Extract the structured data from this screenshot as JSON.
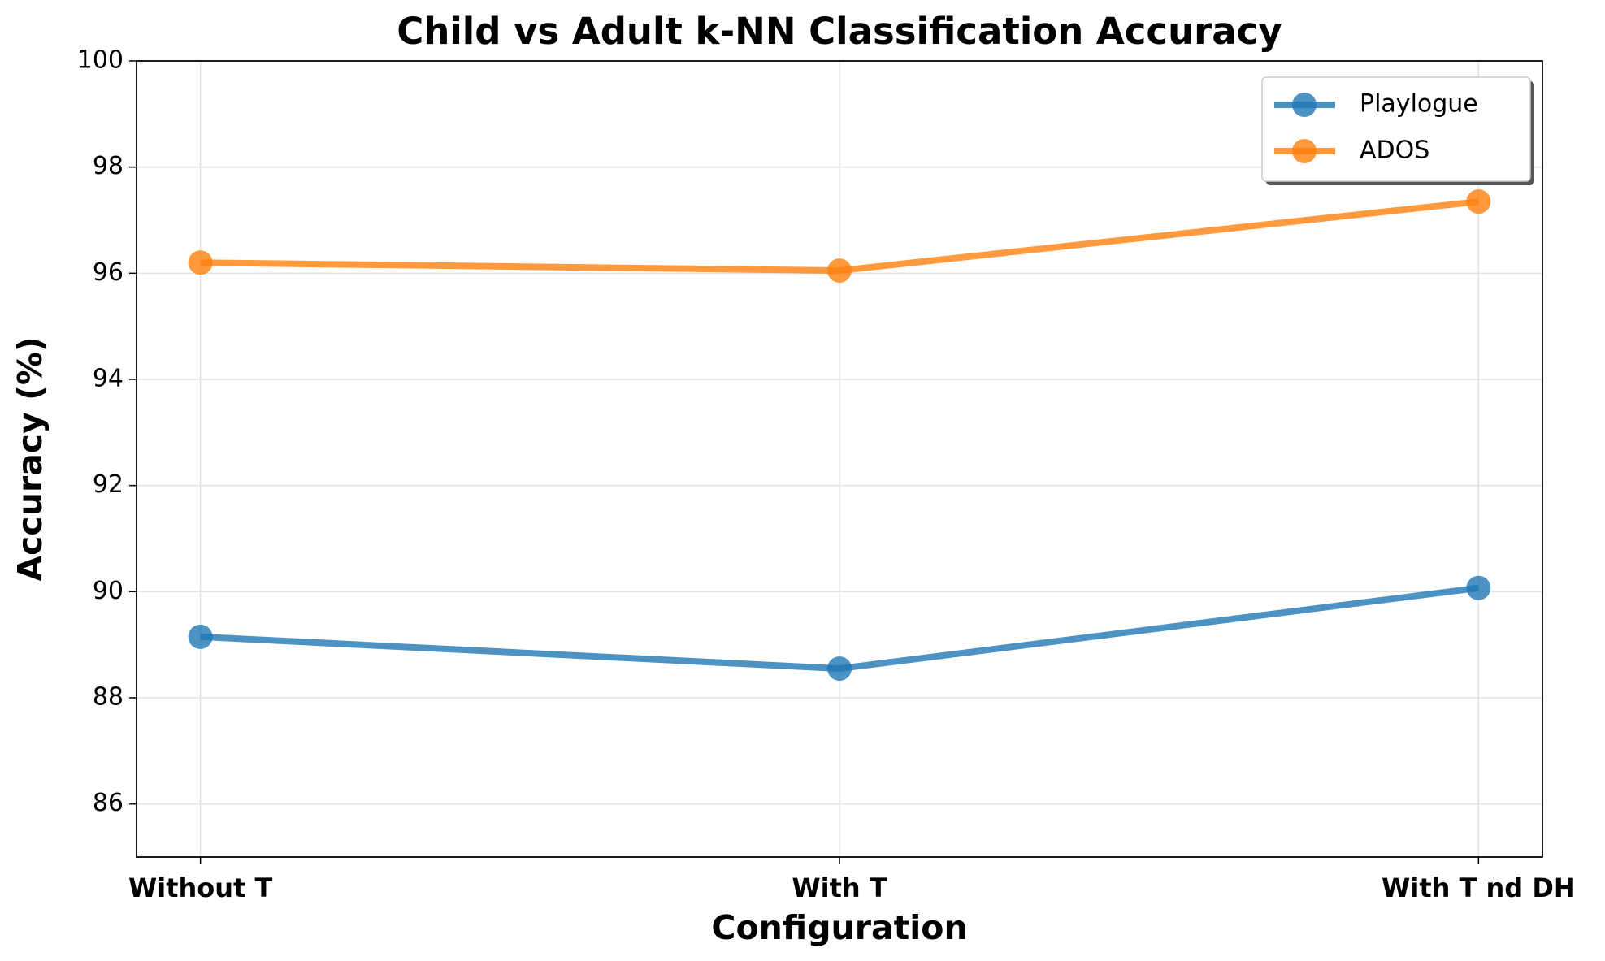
{
  "chart_data": {
    "type": "line",
    "title": "Child vs Adult k-NN Classification Accuracy",
    "xlabel": "Configuration",
    "ylabel": "Accuracy (%)",
    "categories": [
      "Without T",
      "With T",
      "With T nd DH"
    ],
    "series": [
      {
        "name": "Playlogue",
        "color": "#1f77b4",
        "values": [
          89.15,
          88.55,
          90.07
        ]
      },
      {
        "name": "ADOS",
        "color": "#ff7f0e",
        "values": [
          96.2,
          96.05,
          97.35
        ]
      }
    ],
    "ylim": [
      85,
      100
    ],
    "yticks": [
      86,
      88,
      90,
      92,
      94,
      96,
      98,
      100
    ],
    "grid": true,
    "legend": "upper right"
  }
}
